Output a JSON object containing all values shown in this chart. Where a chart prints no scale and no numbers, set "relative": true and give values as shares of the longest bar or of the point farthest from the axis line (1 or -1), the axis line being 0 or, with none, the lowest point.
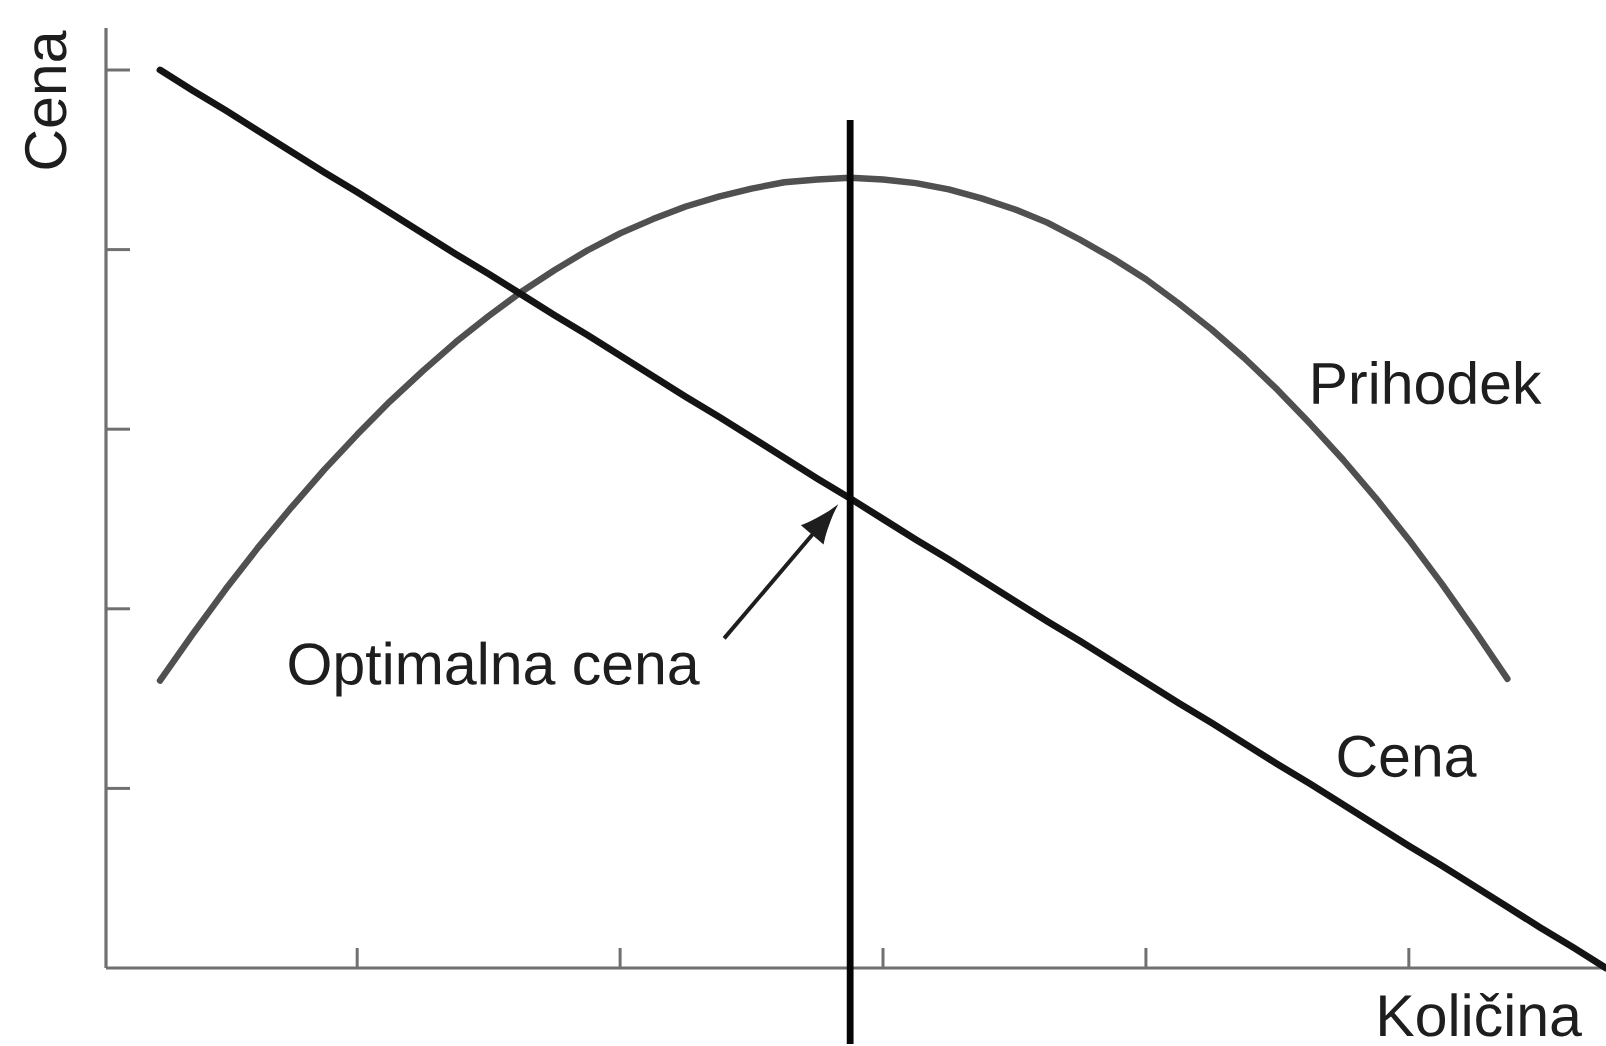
{
  "chart_data": {
    "type": "line",
    "xlabel": "Količina",
    "ylabel": "Cena",
    "relative": true,
    "categories": [
      null,
      null,
      null,
      null,
      null,
      null,
      null,
      null,
      null,
      null,
      null,
      null,
      null,
      null,
      null,
      null,
      null,
      null,
      null,
      null,
      null,
      null,
      null,
      null,
      null,
      null,
      null,
      null,
      null,
      null,
      null,
      null,
      null,
      null,
      null,
      null,
      null,
      null,
      null,
      null,
      null,
      null,
      null,
      null,
      null
    ],
    "series": [
      {
        "name": "Cena",
        "color": "#141414",
        "values": [
          1.0,
          0.977,
          0.955,
          0.932,
          0.909,
          0.886,
          0.864,
          0.841,
          0.818,
          0.795,
          0.773,
          0.75,
          0.727,
          0.705,
          0.682,
          0.659,
          0.636,
          0.614,
          0.591,
          0.568,
          0.545,
          0.523,
          0.5,
          0.477,
          0.455,
          0.432,
          0.409,
          0.386,
          0.364,
          0.341,
          0.318,
          0.295,
          0.273,
          0.25,
          0.227,
          0.205,
          0.182,
          0.159,
          0.136,
          0.114,
          0.091,
          0.068,
          0.045,
          0.023,
          0.0
        ]
      },
      {
        "name": "Prihodek",
        "color": "#505050",
        "values": [
          0.32,
          0.372,
          0.422,
          0.469,
          0.513,
          0.555,
          0.594,
          0.631,
          0.665,
          0.697,
          0.726,
          0.753,
          0.777,
          0.799,
          0.818,
          0.834,
          0.848,
          0.859,
          0.868,
          0.875,
          0.878,
          0.88,
          0.878,
          0.874,
          0.867,
          0.857,
          0.845,
          0.83,
          0.811,
          0.79,
          0.767,
          0.74,
          0.711,
          0.679,
          0.644,
          0.606,
          0.566,
          0.523,
          0.477,
          0.428,
          0.376,
          0.322,
          null,
          null,
          null
        ]
      }
    ],
    "annotations": [
      "Optimalna cena"
    ]
  }
}
